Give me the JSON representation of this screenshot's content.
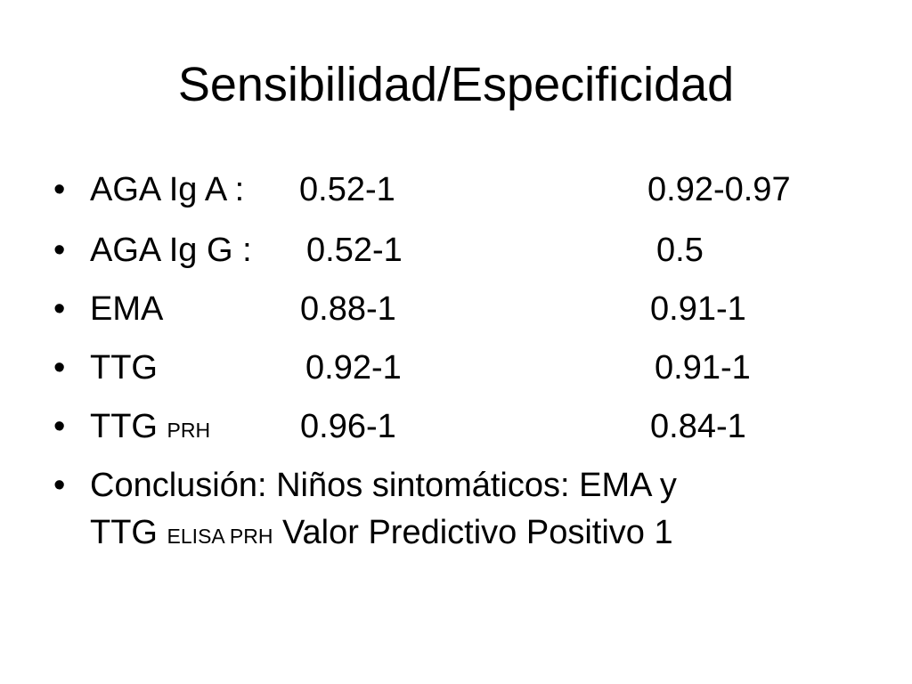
{
  "title": "Sensibilidad/Especificidad",
  "bullet_glyph": "•",
  "rows": [
    {
      "label": "AGA Ig A :",
      "sensitivity": "0.52-1",
      "specificity": "0.92-0.97"
    },
    {
      "label": "AGA Ig G :",
      "sensitivity": "0.52-1",
      "specificity": "0.5"
    },
    {
      "label": "EMA",
      "sensitivity": "0.88-1",
      "specificity": "0.91-1"
    },
    {
      "label": "TTG",
      "sensitivity": "0.92-1",
      "specificity": "0.91-1"
    },
    {
      "label": "TTG",
      "label_subscript": "PRH",
      "sensitivity": "0.96-1",
      "specificity": "0.84-1"
    }
  ],
  "conclusion": {
    "line1": "Conclusión: Niños sintomáticos: EMA y",
    "line2_main": "TTG",
    "line2_subscript": "ELISA PRH",
    "line2_rest": "Valor Predictivo Positivo 1"
  }
}
